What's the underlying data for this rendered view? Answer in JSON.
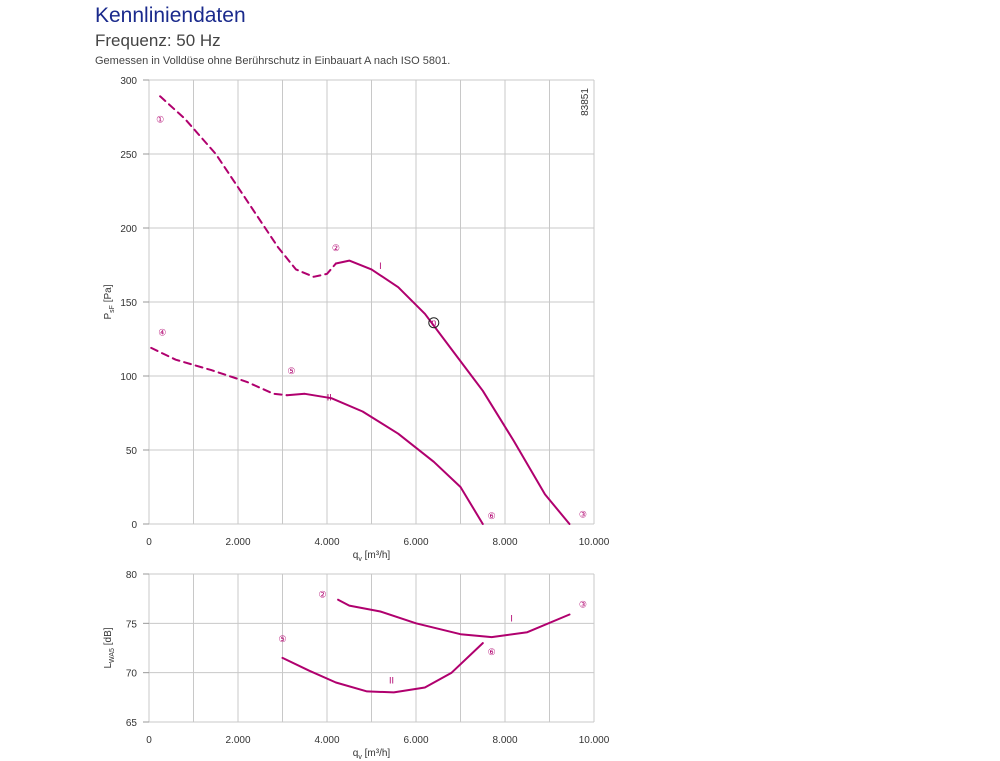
{
  "header": {
    "title": "Kennliniendaten",
    "subtitle": "Frequenz: 50 Hz",
    "note": "Gemessen in Volldüse ohne Berührschutz in Einbauart A nach ISO 5801."
  },
  "colors": {
    "curve": "#b0006e",
    "grid": "#c8c8c8",
    "axis": "#999999"
  },
  "chart_data": [
    {
      "type": "line",
      "id_label": "83851",
      "xlabel_main": "q",
      "xlabel_sub": "v",
      "xlabel_unit": " [m³/h]",
      "ylabel_main": "P",
      "ylabel_sub": "sF",
      "ylabel_unit": " [Pa]",
      "xlim": [
        0,
        10000
      ],
      "ylim": [
        0,
        300
      ],
      "x_ticks": [
        0,
        2000,
        4000,
        6000,
        8000,
        10000
      ],
      "x_tick_labels": [
        "0",
        "2.000",
        "4.000",
        "6.000",
        "8.000",
        "10.000"
      ],
      "y_ticks": [
        0,
        50,
        100,
        150,
        200,
        250,
        300
      ],
      "y_tick_labels": [
        "0",
        "50",
        "100",
        "150",
        "200",
        "250",
        "300"
      ],
      "grid": true,
      "series": [
        {
          "name": "I",
          "style": "dashed",
          "points": [
            [
              250,
              289
            ],
            [
              800,
              274
            ],
            [
              1500,
              250
            ],
            [
              2300,
              214
            ],
            [
              2900,
              187
            ],
            [
              3300,
              172
            ],
            [
              3700,
              167
            ],
            [
              4000,
              169
            ],
            [
              4200,
              176
            ]
          ]
        },
        {
          "name": "I",
          "style": "solid",
          "points": [
            [
              4200,
              176
            ],
            [
              4500,
              178
            ],
            [
              5000,
              172
            ],
            [
              5600,
              160
            ],
            [
              6200,
              142
            ],
            [
              6800,
              118
            ],
            [
              7500,
              90
            ],
            [
              8200,
              56
            ],
            [
              8900,
              20
            ],
            [
              9450,
              0
            ]
          ]
        },
        {
          "name": "II",
          "style": "dashed",
          "points": [
            [
              50,
              119
            ],
            [
              600,
              111
            ],
            [
              1400,
              104
            ],
            [
              2200,
              96
            ],
            [
              2800,
              88
            ],
            [
              3100,
              87
            ]
          ]
        },
        {
          "name": "II",
          "style": "solid",
          "points": [
            [
              3100,
              87
            ],
            [
              3500,
              88
            ],
            [
              4100,
              85
            ],
            [
              4800,
              76
            ],
            [
              5600,
              61
            ],
            [
              6400,
              42
            ],
            [
              7000,
              25
            ],
            [
              7500,
              0
            ]
          ]
        }
      ],
      "annotations": [
        {
          "text": "①",
          "x": 250,
          "y": 274
        },
        {
          "text": "②",
          "x": 4200,
          "y": 187
        },
        {
          "text": "I",
          "x": 5200,
          "y": 175
        },
        {
          "text": "n",
          "x": 6400,
          "y": 136
        },
        {
          "text": "④",
          "x": 300,
          "y": 130
        },
        {
          "text": "⑤",
          "x": 3200,
          "y": 104
        },
        {
          "text": "II",
          "x": 4050,
          "y": 86
        },
        {
          "text": "⑥",
          "x": 7700,
          "y": 6
        },
        {
          "text": "③",
          "x": 9750,
          "y": 7
        }
      ]
    },
    {
      "type": "line",
      "xlabel_main": "q",
      "xlabel_sub": "v",
      "xlabel_unit": " [m³/h]",
      "ylabel_main": "L",
      "ylabel_sub": "WA5",
      "ylabel_unit": " [dB]",
      "xlim": [
        0,
        10000
      ],
      "ylim": [
        65,
        80
      ],
      "x_ticks": [
        0,
        2000,
        4000,
        6000,
        8000,
        10000
      ],
      "x_tick_labels": [
        "0",
        "2.000",
        "4.000",
        "6.000",
        "8.000",
        "10.000"
      ],
      "y_ticks": [
        65,
        70,
        75,
        80
      ],
      "y_tick_labels": [
        "65",
        "70",
        "75",
        "80"
      ],
      "grid": true,
      "series": [
        {
          "name": "I",
          "style": "solid",
          "points": [
            [
              4250,
              77.4
            ],
            [
              4500,
              76.8
            ],
            [
              5200,
              76.2
            ],
            [
              6000,
              75
            ],
            [
              7000,
              73.9
            ],
            [
              7700,
              73.6
            ],
            [
              8500,
              74.1
            ],
            [
              9450,
              75.9
            ]
          ]
        },
        {
          "name": "II",
          "style": "solid",
          "points": [
            [
              3000,
              71.5
            ],
            [
              3600,
              70.2
            ],
            [
              4200,
              69
            ],
            [
              4900,
              68.1
            ],
            [
              5500,
              68
            ],
            [
              6200,
              68.5
            ],
            [
              6800,
              70
            ],
            [
              7500,
              73
            ]
          ]
        }
      ],
      "annotations": [
        {
          "text": "②",
          "x": 3900,
          "y": 78
        },
        {
          "text": "⑤",
          "x": 3000,
          "y": 73.5
        },
        {
          "text": "I",
          "x": 8150,
          "y": 75.6
        },
        {
          "text": "II",
          "x": 5450,
          "y": 69.3
        },
        {
          "text": "⑥",
          "x": 7700,
          "y": 72.2
        },
        {
          "text": "③",
          "x": 9750,
          "y": 77
        }
      ]
    }
  ]
}
